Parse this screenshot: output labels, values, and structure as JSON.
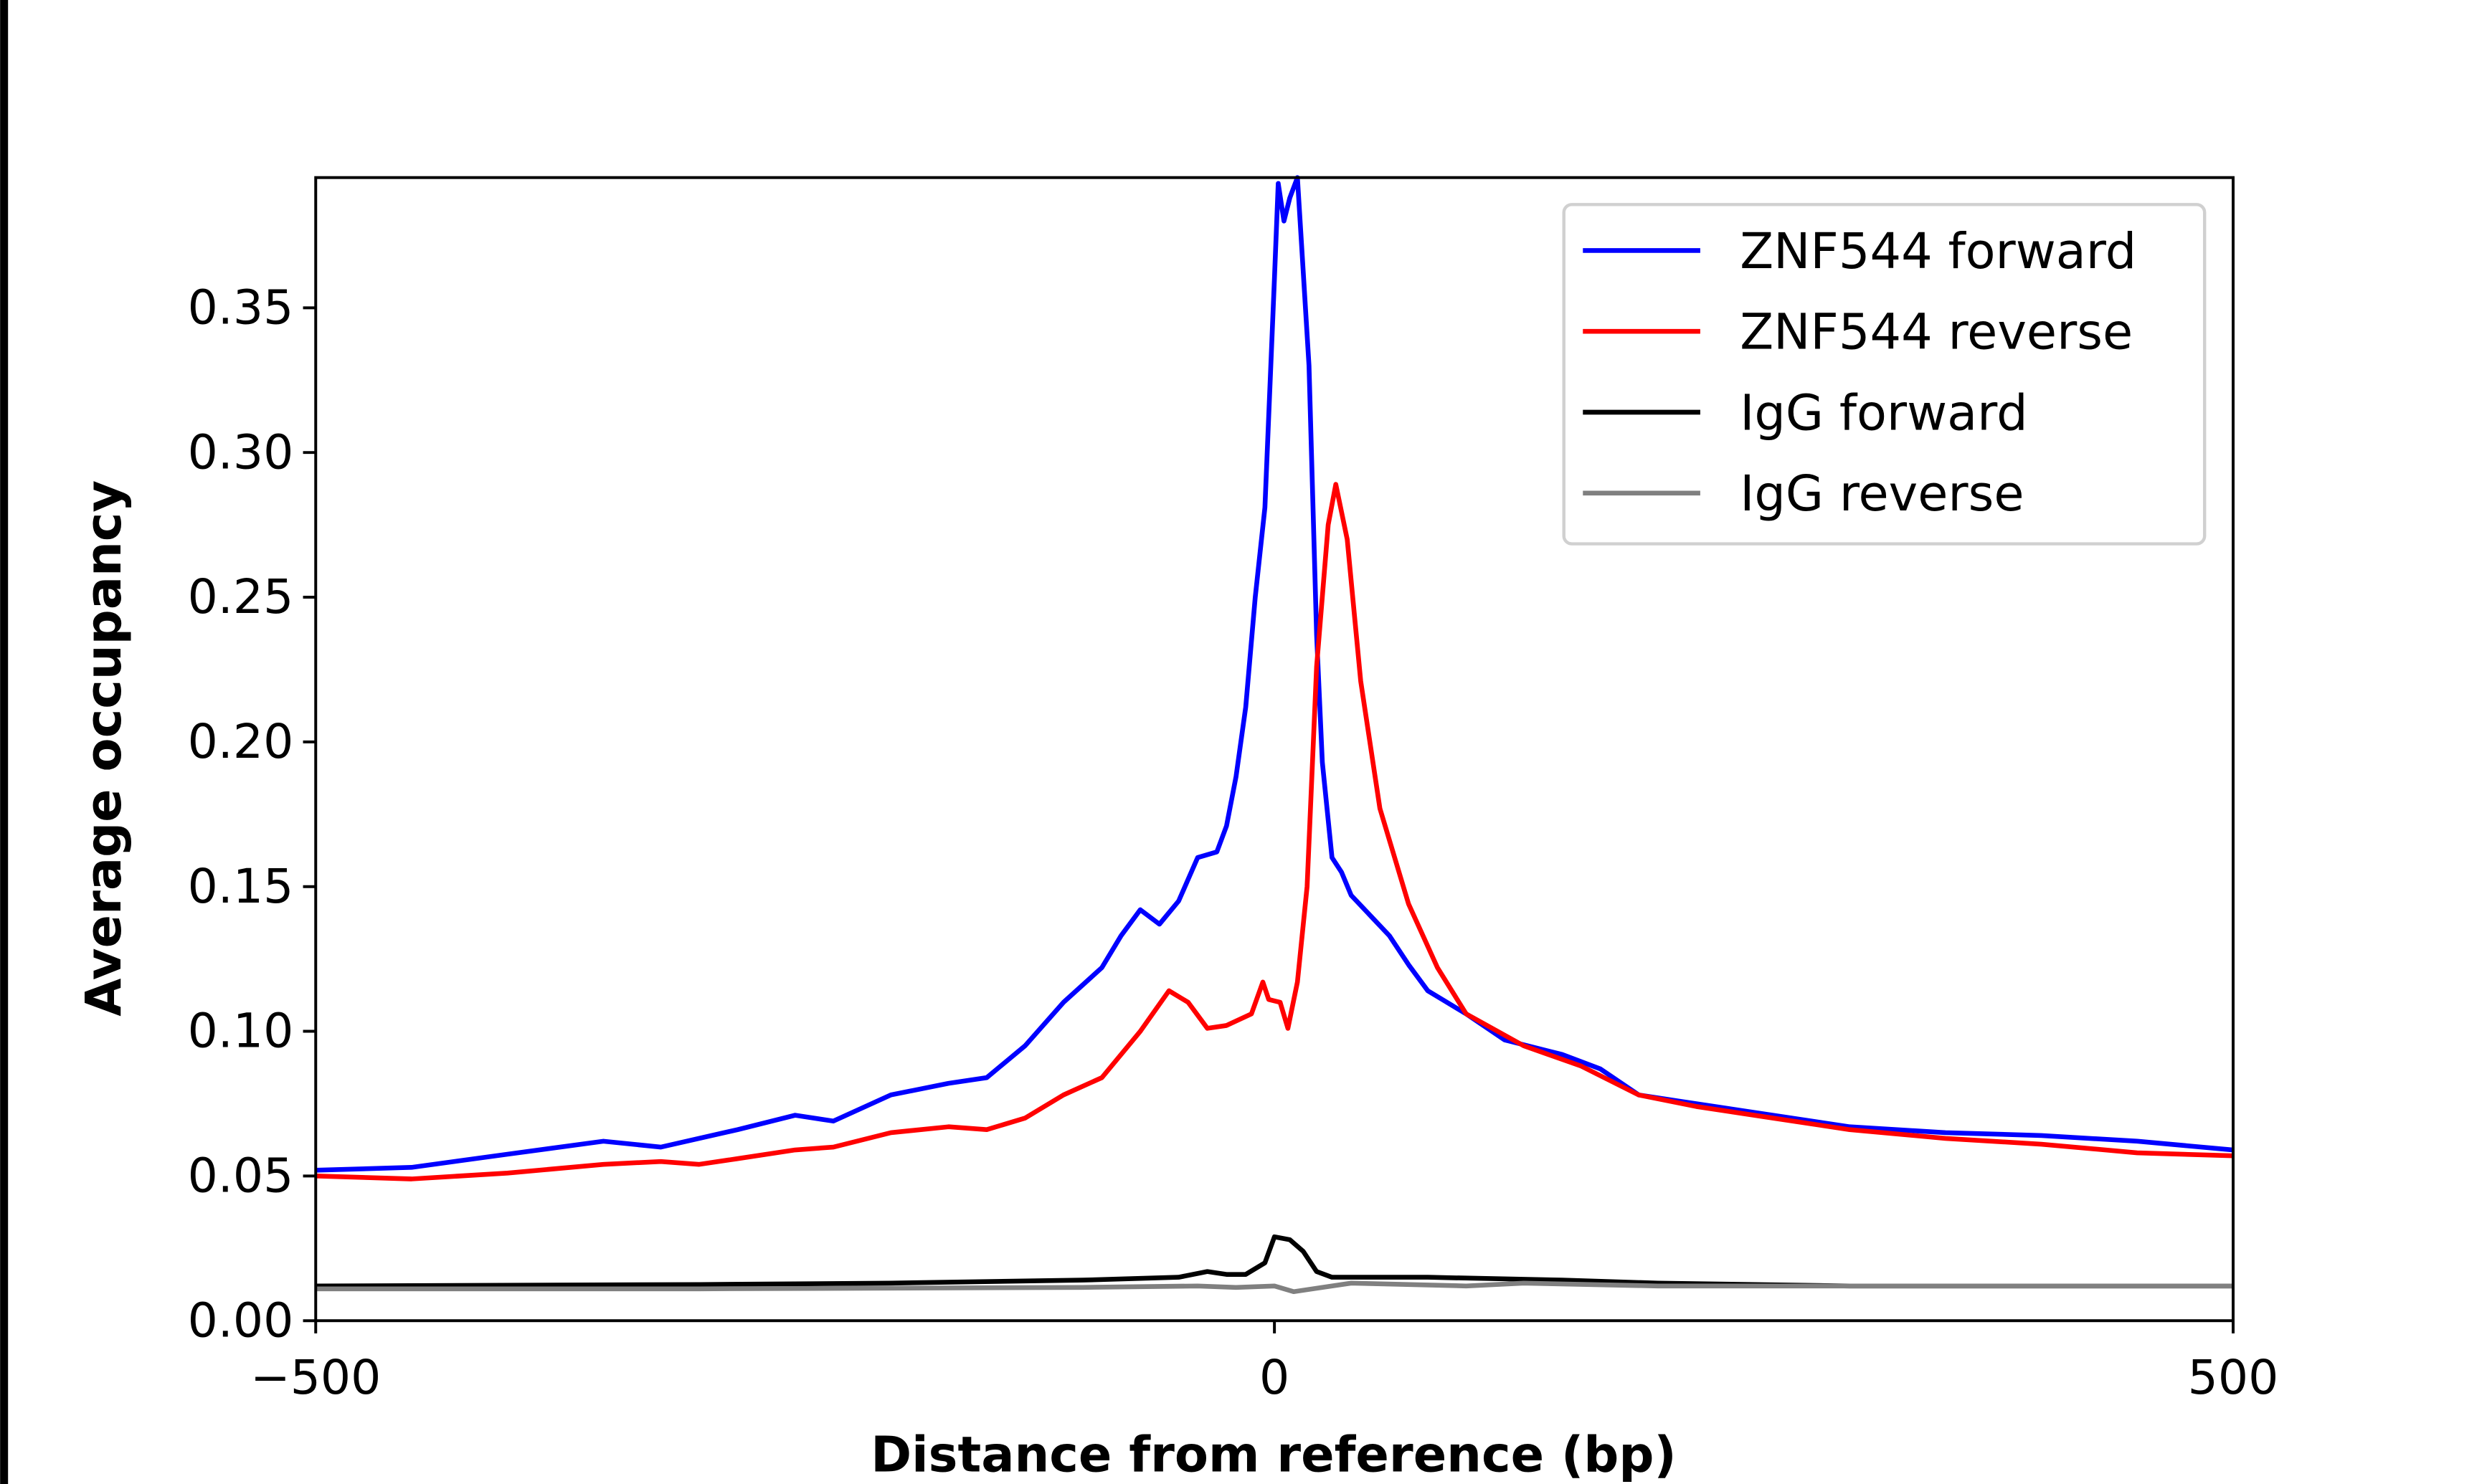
{
  "chart_data": {
    "type": "line",
    "title": "",
    "xlabel": "Distance from reference (bp)",
    "ylabel": "Average occupancy",
    "xlim": [
      -500,
      500
    ],
    "ylim": [
      0,
      0.395
    ],
    "xticks": [
      -500,
      0,
      500
    ],
    "xtick_labels": [
      "−500",
      "0",
      "500"
    ],
    "yticks": [
      0,
      0.05,
      0.1,
      0.15,
      0.2,
      0.25,
      0.3,
      0.35
    ],
    "ytick_labels": [
      "0.00",
      "0.05",
      "0.10",
      "0.15",
      "0.20",
      "0.25",
      "0.30",
      "0.35"
    ],
    "grid": false,
    "legend_position": "top-right",
    "series": [
      {
        "name": "ZNF544 forward",
        "color": "#0000ff",
        "x": [
          -500,
          -450,
          -400,
          -350,
          -320,
          -300,
          -280,
          -250,
          -230,
          -200,
          -170,
          -150,
          -130,
          -110,
          -90,
          -80,
          -70,
          -60,
          -50,
          -40,
          -30,
          -25,
          -20,
          -15,
          -10,
          -5,
          0,
          2,
          5,
          8,
          12,
          15,
          18,
          22,
          25,
          30,
          35,
          40,
          50,
          60,
          70,
          80,
          100,
          120,
          150,
          170,
          190,
          210,
          250,
          300,
          350,
          400,
          450,
          500
        ],
        "y": [
          0.052,
          0.053,
          0.0575,
          0.062,
          0.06,
          0.063,
          0.066,
          0.071,
          0.069,
          0.078,
          0.082,
          0.084,
          0.095,
          0.11,
          0.122,
          0.133,
          0.142,
          0.137,
          0.145,
          0.16,
          0.162,
          0.171,
          0.188,
          0.212,
          0.25,
          0.281,
          0.36,
          0.393,
          0.38,
          0.388,
          0.395,
          0.363,
          0.33,
          0.237,
          0.193,
          0.16,
          0.155,
          0.147,
          0.14,
          0.133,
          0.123,
          0.114,
          0.106,
          0.097,
          0.092,
          0.087,
          0.078,
          0.076,
          0.072,
          0.067,
          0.065,
          0.064,
          0.062,
          0.059
        ]
      },
      {
        "name": "ZNF544 reverse",
        "color": "#ff0000",
        "x": [
          -500,
          -450,
          -400,
          -350,
          -320,
          -300,
          -280,
          -250,
          -230,
          -200,
          -170,
          -150,
          -130,
          -110,
          -90,
          -70,
          -55,
          -45,
          -35,
          -25,
          -12,
          -6,
          -3,
          3,
          7,
          12,
          17,
          22,
          28,
          32,
          38,
          45,
          55,
          70,
          85,
          100,
          130,
          160,
          190,
          220,
          260,
          300,
          350,
          400,
          450,
          500
        ],
        "y": [
          0.05,
          0.049,
          0.051,
          0.054,
          0.055,
          0.054,
          0.056,
          0.059,
          0.06,
          0.065,
          0.067,
          0.066,
          0.07,
          0.078,
          0.084,
          0.1,
          0.114,
          0.11,
          0.101,
          0.102,
          0.106,
          0.117,
          0.111,
          0.11,
          0.101,
          0.117,
          0.15,
          0.226,
          0.275,
          0.289,
          0.27,
          0.221,
          0.177,
          0.144,
          0.122,
          0.106,
          0.095,
          0.088,
          0.078,
          0.074,
          0.07,
          0.066,
          0.063,
          0.061,
          0.058,
          0.057
        ]
      },
      {
        "name": "IgG forward",
        "color": "#000000",
        "x": [
          -500,
          -300,
          -200,
          -100,
          -50,
          -35,
          -25,
          -15,
          -5,
          0,
          8,
          15,
          22,
          30,
          60,
          80,
          150,
          200,
          300,
          500
        ],
        "y": [
          0.012,
          0.0125,
          0.013,
          0.014,
          0.015,
          0.017,
          0.016,
          0.016,
          0.02,
          0.029,
          0.028,
          0.024,
          0.017,
          0.015,
          0.015,
          0.015,
          0.014,
          0.013,
          0.012,
          0.012
        ]
      },
      {
        "name": "IgG reverse",
        "color": "#808080",
        "x": [
          -500,
          -300,
          -100,
          -40,
          -20,
          0,
          10,
          20,
          40,
          100,
          130,
          200,
          300,
          500
        ],
        "y": [
          0.011,
          0.011,
          0.0115,
          0.012,
          0.0115,
          0.012,
          0.01,
          0.011,
          0.013,
          0.012,
          0.013,
          0.012,
          0.012,
          0.012
        ]
      }
    ]
  }
}
